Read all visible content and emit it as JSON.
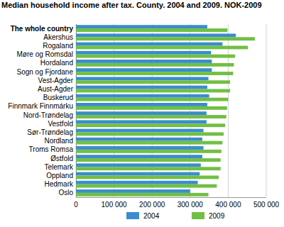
{
  "chart_data": {
    "type": "bar",
    "orientation": "horizontal",
    "title": "Median household income after tax. County. 2004 and 2009. NOK-2009",
    "categories": [
      "The whole country",
      "Akershus",
      "Rogaland",
      "Møre og Romsdal",
      "Hordaland",
      "Sogn og Fjordane",
      "Vest-Agder",
      "Aust-Agder",
      "Buskerud",
      "Finnmark Finnmárku",
      "Nord-Trøndelag",
      "Vestfold",
      "Sør-Trøndelag",
      "Nordland",
      "Troms Romsa",
      "Østfold",
      "Telemark",
      "Oppland",
      "Hedmark",
      "Oslo"
    ],
    "series": [
      {
        "name": "2004",
        "color": "#3a8dcc",
        "values": [
          345000,
          420000,
          385000,
          355000,
          357000,
          357000,
          348000,
          345000,
          350000,
          345000,
          343000,
          343000,
          335000,
          332000,
          335000,
          332000,
          328000,
          325000,
          320000,
          300000
        ]
      },
      {
        "name": "2009",
        "color": "#72bf44",
        "values": [
          398000,
          470000,
          452000,
          418000,
          415000,
          413000,
          405000,
          405000,
          400000,
          397000,
          395000,
          392000,
          388000,
          385000,
          382000,
          380000,
          380000,
          375000,
          370000,
          348000
        ]
      }
    ],
    "xlim": [
      0,
      500000
    ],
    "xticks": [
      0,
      {
        "value": 100000,
        "label": "100 000"
      },
      {
        "value": 200000,
        "label": "200 000"
      },
      {
        "value": 300000,
        "label": "300 000"
      },
      {
        "value": 400000,
        "label": "400 000"
      },
      {
        "value": 500000,
        "label": "500 000"
      }
    ],
    "grid": true,
    "legend": "bottom"
  }
}
